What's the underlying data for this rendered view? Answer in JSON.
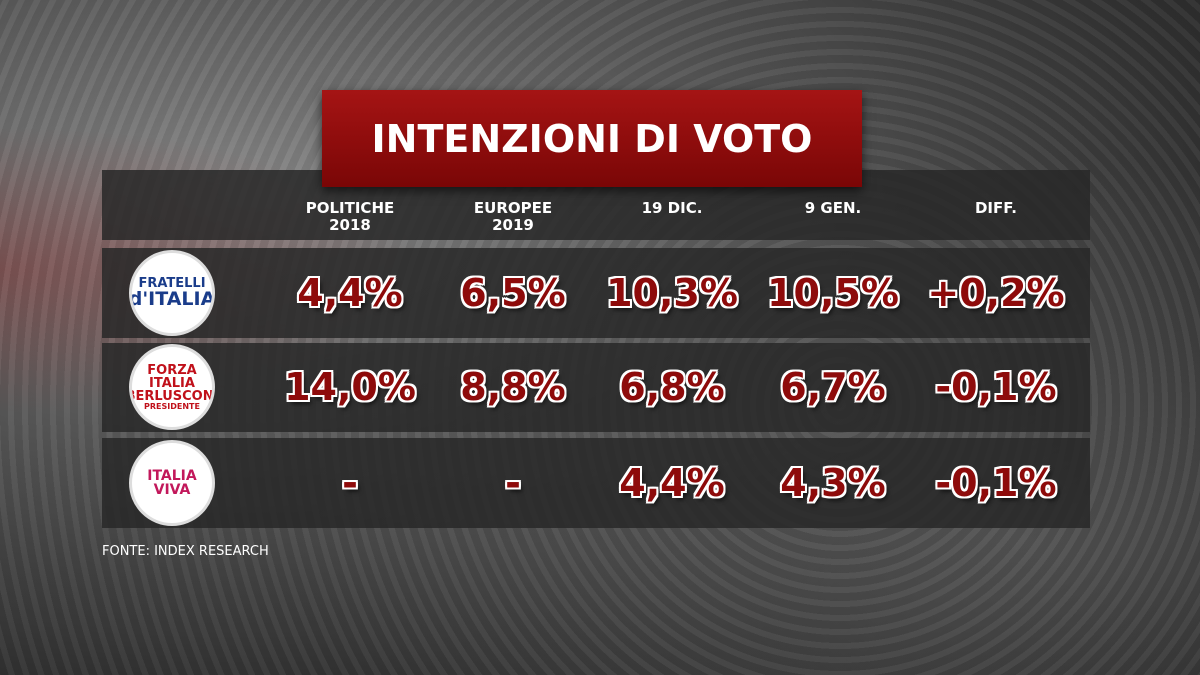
{
  "title": "INTENZIONI DI VOTO",
  "table": {
    "headers": [
      "POLITICHE 2018",
      "EUROPEE 2019",
      "19 DIC.",
      "9 GEN.",
      "DIFF."
    ],
    "rows": [
      {
        "logo": [
          "FRATELLI",
          "d'ITALIA"
        ],
        "cells": [
          "4,4%",
          "6,5%",
          "10,3%",
          "10,5%",
          "+0,2%"
        ]
      },
      {
        "logo": [
          "FORZA",
          "ITALIA",
          "BERLUSCONI",
          "PRESIDENTE"
        ],
        "cells": [
          "14,0%",
          "8,8%",
          "6,8%",
          "6,7%",
          "-0,1%"
        ]
      },
      {
        "logo": [
          "ITALIA",
          "VIVA"
        ],
        "cells": [
          "-",
          "-",
          "4,4%",
          "4,3%",
          "-0,1%"
        ]
      }
    ]
  },
  "source": "FONTE: INDEX RESEARCH"
}
